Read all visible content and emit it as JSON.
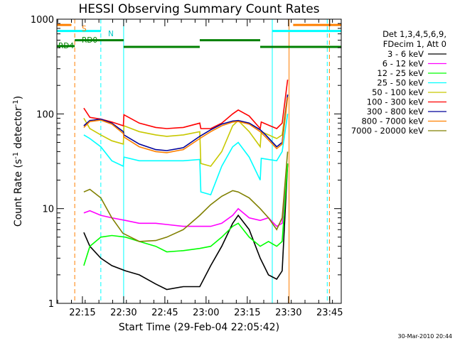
{
  "chart_data": {
    "type": "line",
    "title": "HESSI Observing Summary Count Rates",
    "xlabel": "Start Time (29-Feb-04 22:05:42)",
    "ylabel": "Count Rate (s",
    "ylabel_sup1": "-1",
    "ylabel_mid": " detector",
    "ylabel_sup2": "-1",
    "ylabel_end": ")",
    "y_scale": "log",
    "ylim": [
      1,
      1000
    ],
    "xlim_minutes": [
      0,
      103.5
    ],
    "x_tick_labels": [
      "22:15",
      "22:30",
      "22:45",
      "23:00",
      "23:15",
      "23:30",
      "23:45"
    ],
    "x_tick_minutes": [
      9.3,
      24.3,
      39.3,
      54.3,
      69.3,
      84.3,
      99.3
    ],
    "y_tick_labels": [
      "1",
      "10",
      "100",
      "1000"
    ],
    "legend_header": [
      "Det 1,3,4,5,6,9,",
      "FDecim 1, Att 0"
    ],
    "legend_position": "right",
    "series": [
      {
        "name": "3 - 6 keV",
        "color": "#000000",
        "x": [
          9.8,
          12,
          16,
          20,
          25,
          30,
          36,
          40,
          46,
          52,
          56,
          60,
          64,
          66,
          70,
          74,
          77,
          80,
          82,
          84
        ],
        "values": [
          5.6,
          4,
          3,
          2.5,
          2.2,
          2,
          1.6,
          1.4,
          1.5,
          1.5,
          2.5,
          4,
          7,
          8.5,
          6,
          3,
          2,
          1.8,
          2.2,
          30
        ]
      },
      {
        "name": "6 - 12 keV",
        "color": "#ff00ff",
        "x": [
          9.8,
          12,
          16,
          20,
          25,
          30,
          36,
          40,
          46,
          52,
          56,
          60,
          64,
          66,
          70,
          74,
          77,
          80,
          82,
          84
        ],
        "values": [
          9,
          9.5,
          8.5,
          8,
          7.5,
          7,
          7,
          6.8,
          6.5,
          6.5,
          6.5,
          7,
          8.5,
          10,
          8,
          7.5,
          8,
          6.5,
          7,
          30
        ]
      },
      {
        "name": "12 - 25 keV",
        "color": "#00ff00",
        "x": [
          9.8,
          12,
          16,
          20,
          25,
          30,
          36,
          40,
          46,
          52,
          56,
          60,
          64,
          66,
          70,
          74,
          77,
          80,
          82,
          84
        ],
        "values": [
          2.5,
          4,
          5,
          5.2,
          5,
          4.5,
          4,
          3.5,
          3.6,
          3.8,
          4,
          5,
          6.5,
          7,
          5,
          4,
          4.5,
          4,
          4.5,
          30
        ]
      },
      {
        "name": "25 - 50 keV",
        "color": "#00ffff",
        "x": [
          9.8,
          12,
          16,
          20,
          24.2,
          24.4,
          30,
          40,
          46,
          52,
          52.4,
          56,
          60,
          64,
          66,
          70,
          74,
          74.4,
          80,
          82,
          84
        ],
        "values": [
          60,
          55,
          45,
          32,
          28,
          35,
          32,
          32,
          32,
          33,
          15,
          14,
          28,
          45,
          50,
          35,
          20,
          34,
          32,
          40,
          100
        ]
      },
      {
        "name": "50 - 100 keV",
        "color": "#c8c800",
        "x": [
          9.8,
          12,
          16,
          20,
          24.2,
          24.4,
          30,
          36,
          40,
          46,
          52,
          52.4,
          56,
          60,
          64,
          66,
          70,
          74,
          74.4,
          80,
          82,
          84
        ],
        "values": [
          90,
          70,
          60,
          52,
          48,
          75,
          65,
          60,
          58,
          60,
          65,
          30,
          28,
          40,
          75,
          85,
          65,
          45,
          65,
          55,
          60,
          160
        ]
      },
      {
        "name": "100 - 300 keV",
        "color": "#ff0000",
        "x": [
          9.8,
          12,
          16,
          20,
          24.2,
          24.4,
          30,
          36,
          40,
          46,
          52,
          52.4,
          56,
          60,
          64,
          66,
          70,
          74,
          74.4,
          80,
          82,
          84
        ],
        "values": [
          115,
          92,
          88,
          82,
          75,
          98,
          80,
          72,
          70,
          72,
          80,
          70,
          70,
          80,
          100,
          110,
          95,
          70,
          82,
          70,
          80,
          230
        ]
      },
      {
        "name": "300 - 800 keV",
        "color": "#000099",
        "x": [
          9.8,
          12,
          16,
          20,
          24.2,
          24.4,
          30,
          36,
          40,
          46,
          52,
          56,
          60,
          64,
          66,
          70,
          74,
          76,
          80,
          82,
          84
        ],
        "values": [
          75,
          85,
          88,
          80,
          65,
          60,
          48,
          42,
          41,
          44,
          58,
          68,
          78,
          84,
          85,
          80,
          68,
          60,
          45,
          50,
          160
        ]
      },
      {
        "name": "800 - 7000 keV",
        "color": "#ff8000",
        "x": [
          9.8,
          12,
          16,
          20,
          24.2,
          24.4,
          30,
          36,
          40,
          46,
          52,
          56,
          60,
          64,
          66,
          70,
          74,
          76,
          80,
          82,
          84
        ],
        "values": [
          72,
          83,
          86,
          78,
          62,
          57,
          45,
          40,
          39,
          42,
          55,
          65,
          75,
          82,
          83,
          78,
          65,
          57,
          43,
          48,
          150
        ]
      },
      {
        "name": "7000 - 20000 keV",
        "color": "#808000",
        "x": [
          9.8,
          12,
          16,
          20,
          24,
          30,
          36,
          40,
          46,
          52,
          56,
          60,
          64,
          66,
          70,
          74,
          77,
          80,
          82,
          84
        ],
        "values": [
          15,
          16,
          13,
          8,
          5.5,
          4.5,
          4.6,
          5,
          6,
          8.5,
          11,
          13.5,
          15.5,
          15,
          13,
          10,
          8,
          6,
          8,
          40
        ]
      }
    ],
    "state_bars": [
      {
        "label": "S",
        "color": "#ff8000",
        "level": 870,
        "segments": [
          [
            0,
            5.3
          ],
          [
            86,
            103.5
          ]
        ]
      },
      {
        "label": "N",
        "color": "#00ffff",
        "level": 750,
        "segments": [
          [
            0,
            16
          ],
          [
            78.4,
            103.5
          ]
        ]
      },
      {
        "label": "RD0",
        "color": "#008000",
        "level": 600,
        "segments": [
          [
            6.5,
            24.3
          ],
          [
            24.3,
            52
          ],
          [
            52,
            74
          ],
          [
            74,
            103.5
          ]
        ]
      },
      {
        "label": "RD4",
        "color": "#008000",
        "level": 520,
        "segments": [
          [
            0,
            6.5
          ]
        ]
      }
    ],
    "vertical_markers": [
      {
        "color": "#ff8000",
        "x": 6.5,
        "style": "dashed"
      },
      {
        "color": "#00ffff",
        "x": 16.0,
        "style": "dashed"
      },
      {
        "color": "#00ffff",
        "x": 24.3,
        "style": "solid"
      },
      {
        "color": "#00ffff",
        "x": 78.4,
        "style": "solid"
      },
      {
        "color": "#ff8000",
        "x": 84.5,
        "style": "solid"
      },
      {
        "color": "#00ffff",
        "x": 98.4,
        "style": "dashed"
      },
      {
        "color": "#ff8000",
        "x": 99.2,
        "style": "dashed"
      }
    ],
    "footer_date": "30-Mar-2010 20:44"
  }
}
